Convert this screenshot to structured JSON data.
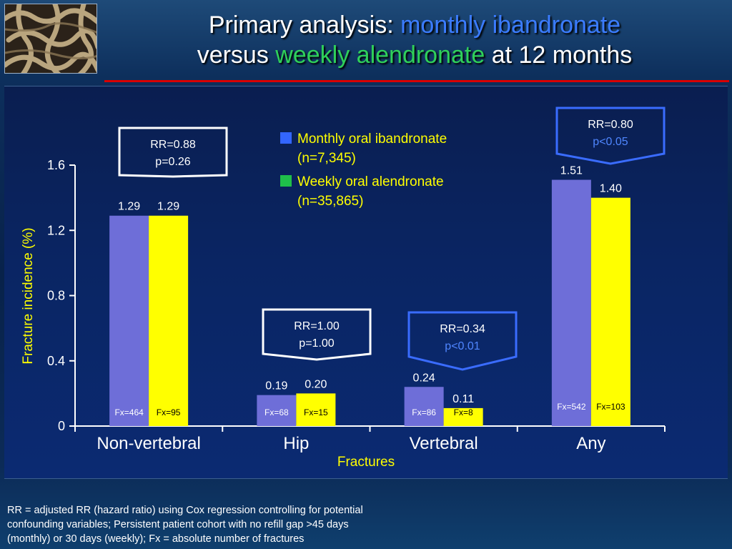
{
  "header": {
    "title_line1_plain": "Primary analysis: ",
    "title_line1_blue": "monthly ibandronate",
    "title_line2_plain_a": "versus ",
    "title_line2_green": "weekly alendronate",
    "title_line2_plain_b": " at 12 months"
  },
  "colors": {
    "series1": "#6e6ed8",
    "series2": "#ffff00",
    "legend1": "#3366ff",
    "legend2": "#1fbf4a",
    "axis": "#ffffff",
    "ylabel": "#ffff00",
    "xlabel": "#ffff00",
    "callout_white": "#ffffff",
    "callout_blue": "#3a6cff"
  },
  "chart_data": {
    "type": "bar",
    "xlabel": "Fractures",
    "ylabel": "Fracture incidence (%)",
    "ylim": [
      0,
      1.6
    ],
    "yticks": [
      "0",
      "0.4",
      "0.8",
      "1.2",
      "1.6"
    ],
    "categories": [
      "Non-vertebral",
      "Hip",
      "Vertebral",
      "Any"
    ],
    "series": [
      {
        "name": "Monthly oral ibandronate",
        "name_line2": "(n=7,345)",
        "values": [
          1.29,
          0.19,
          0.24,
          1.51
        ],
        "value_labels": [
          "1.29",
          "0.19",
          "0.24",
          "1.51"
        ],
        "fx_labels": [
          "Fx=464",
          "Fx=68",
          "Fx=86",
          "Fx=542"
        ]
      },
      {
        "name": "Weekly oral alendronate",
        "name_line2": "(n=35,865)",
        "values": [
          1.29,
          0.2,
          0.11,
          1.4
        ],
        "value_labels": [
          "1.29",
          "0.20",
          "0.11",
          "1.40"
        ],
        "fx_labels": [
          "Fx=95",
          "Fx=15",
          "Fx=8",
          "Fx=103"
        ]
      }
    ],
    "annotations": [
      {
        "category": "Non-vertebral",
        "rr": "RR=0.88",
        "p": "p=0.26",
        "style": "white"
      },
      {
        "category": "Hip",
        "rr": "RR=1.00",
        "p": "p=1.00",
        "style": "white"
      },
      {
        "category": "Vertebral",
        "rr": "RR=0.34",
        "p": "p<0.01",
        "style": "blue"
      },
      {
        "category": "Any",
        "rr": "RR=0.80",
        "p": "p<0.05",
        "style": "blue"
      }
    ],
    "legend_position": "top-center"
  },
  "footnote": {
    "line1": "RR = adjusted RR (hazard ratio) using Cox regression controlling for potential",
    "line2": "confounding variables; Persistent patient cohort with no refill gap >45 days",
    "line3": "(monthly) or 30 days (weekly); Fx = absolute number of fractures"
  }
}
